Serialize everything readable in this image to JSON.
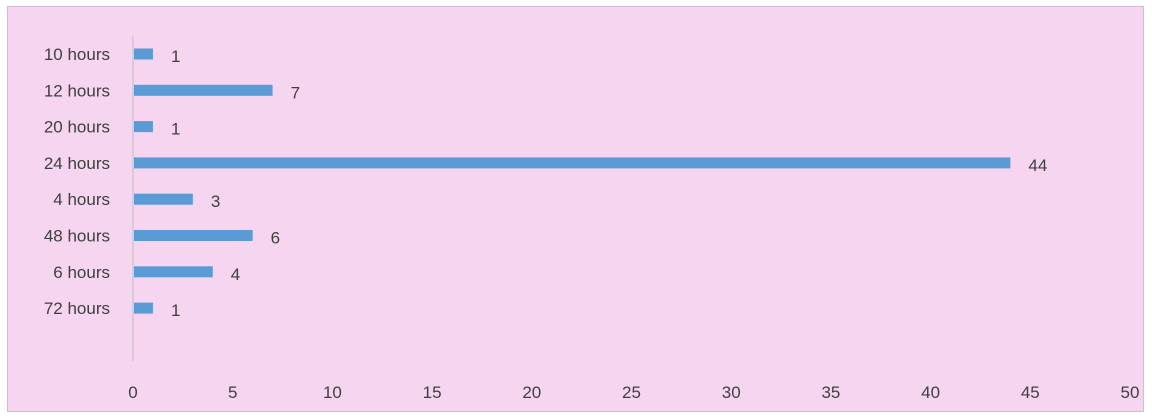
{
  "chart_data": {
    "type": "bar",
    "orientation": "horizontal",
    "categories": [
      "10 hours",
      "12 hours",
      "20 hours",
      "24 hours",
      "4 hours",
      "48 hours",
      "6 hours",
      "72 hours"
    ],
    "values": [
      1,
      7,
      1,
      44,
      3,
      6,
      4,
      1
    ],
    "xlim": [
      0,
      50
    ],
    "x_ticks": [
      0,
      5,
      10,
      15,
      20,
      25,
      30,
      35,
      40,
      45,
      50
    ],
    "title": "",
    "xlabel": "",
    "ylabel": "",
    "grid": false,
    "legend": "none",
    "data_labels": true,
    "colors": {
      "bar": "#5b9bd5",
      "background": "#f5d5ef",
      "axis": "#bfbfbf",
      "text": "#404040"
    }
  }
}
